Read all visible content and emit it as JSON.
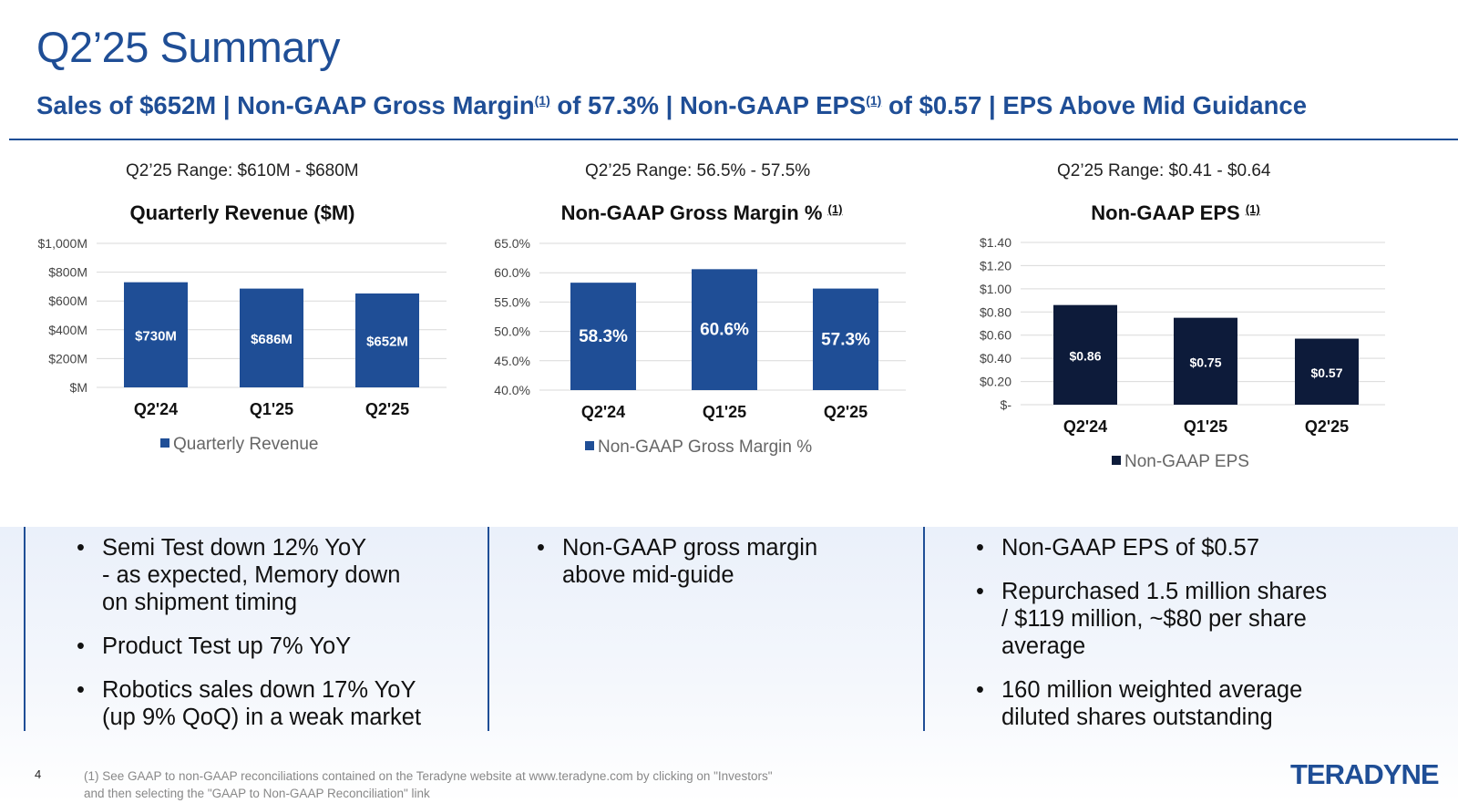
{
  "page": {
    "title": "Q2’25 Summary",
    "subtitle_parts": [
      "Sales of $652M | Non-GAAP Gross Margin",
      "(1)",
      " of 57.3% | Non-GAAP EPS",
      "(1)",
      " of $0.57 | EPS Above Mid Guidance"
    ],
    "page_number": "4",
    "footnote": "(1)  See GAAP to non-GAAP reconciliations contained on the Teradyne website at www.teradyne.com by clicking on \"Investors\" and then selecting the \"GAAP to Non-GAAP Reconciliation\" link",
    "logo": "TERADYNE"
  },
  "ranges": [
    "Q2’25 Range: $610M - $680M",
    "Q2’25 Range: 56.5% - 57.5%",
    "Q2’25 Range: $0.41 - $0.64"
  ],
  "bullets": {
    "left": [
      "Semi Test down 12% YoY\n- as expected, Memory down\non shipment timing",
      "Product Test up 7% YoY",
      "Robotics sales down 17% YoY\n(up 9% QoQ) in a weak market"
    ],
    "middle": [
      "Non-GAAP gross margin\nabove mid-guide"
    ],
    "right": [
      "Non-GAAP EPS of $0.57",
      "Repurchased 1.5 million shares\n/ $119 million, ~$80 per share\naverage",
      "160 million weighted average\ndiluted shares outstanding"
    ]
  },
  "colors": {
    "brand": "#1f4e96",
    "bar_blue": "#1f4e96",
    "bar_navy": "#0d1b3a",
    "grid": "#d9d9d9"
  },
  "chart_data": [
    {
      "type": "bar",
      "title": "Quarterly Revenue ($M)",
      "title_note": "",
      "categories": [
        "Q2'24",
        "Q1'25",
        "Q2'25"
      ],
      "series": [
        {
          "name": "Quarterly Revenue",
          "values": [
            730,
            686,
            652
          ]
        }
      ],
      "data_labels": [
        "$730M",
        "$686M",
        "$652M"
      ],
      "ylim": [
        0,
        1000
      ],
      "yticks": [
        0,
        200,
        400,
        600,
        800,
        1000
      ],
      "ytick_labels": [
        "$M",
        "$200M",
        "$400M",
        "$600M",
        "$800M",
        "$1,000M"
      ],
      "grid": true,
      "legend": "bottom",
      "color": "#1f4e96"
    },
    {
      "type": "bar",
      "title": "Non-GAAP Gross Margin % ",
      "title_note": "(1)",
      "categories": [
        "Q2'24",
        "Q1'25",
        "Q2'25"
      ],
      "series": [
        {
          "name": "Non-GAAP Gross Margin %",
          "values": [
            58.3,
            60.6,
            57.3
          ]
        }
      ],
      "data_labels": [
        "58.3%",
        "60.6%",
        "57.3%"
      ],
      "ylim": [
        40,
        65
      ],
      "yticks": [
        40,
        45,
        50,
        55,
        60,
        65
      ],
      "ytick_labels": [
        "40.0%",
        "45.0%",
        "50.0%",
        "55.0%",
        "60.0%",
        "65.0%"
      ],
      "grid": true,
      "legend": "bottom",
      "color": "#1f4e96"
    },
    {
      "type": "bar",
      "title": "Non-GAAP EPS ",
      "title_note": "(1)",
      "categories": [
        "Q2'24",
        "Q1'25",
        "Q2'25"
      ],
      "series": [
        {
          "name": "Non-GAAP EPS",
          "values": [
            0.86,
            0.75,
            0.57
          ]
        }
      ],
      "data_labels": [
        "$0.86",
        "$0.75",
        "$0.57"
      ],
      "ylim": [
        0,
        1.4
      ],
      "yticks": [
        0,
        0.2,
        0.4,
        0.6,
        0.8,
        1.0,
        1.2,
        1.4
      ],
      "ytick_labels": [
        "$-",
        "$0.20",
        "$0.40",
        "$0.60",
        "$0.80",
        "$1.00",
        "$1.20",
        "$1.40"
      ],
      "grid": true,
      "legend": "bottom",
      "color": "#0d1b3a"
    }
  ]
}
